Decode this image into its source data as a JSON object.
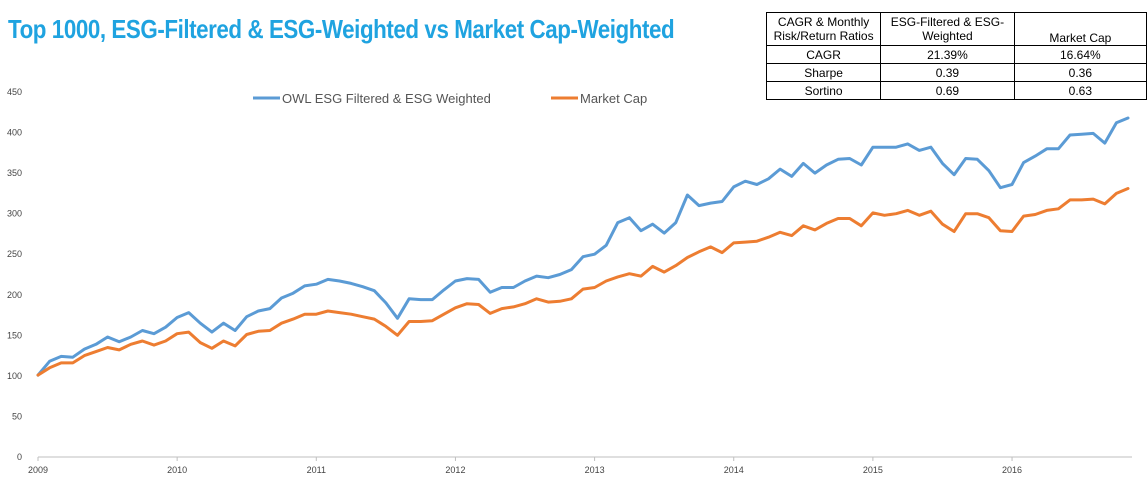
{
  "title": "Top 1000, ESG-Filtered & ESG-Weighted vs Market Cap-Weighted",
  "table": {
    "headers": [
      "CAGR & Monthly Risk/Return Ratios",
      "ESG-Filtered & ESG-Weighted",
      "Market Cap"
    ],
    "rows": [
      {
        "label": "CAGR",
        "esg": "21.39%",
        "mkt": "16.64%"
      },
      {
        "label": "Sharpe",
        "esg": "0.39",
        "mkt": "0.36"
      },
      {
        "label": "Sortino",
        "esg": "0.69",
        "mkt": "0.63"
      }
    ]
  },
  "chart_data": {
    "type": "line",
    "x": [
      "2009-01",
      "2009-02",
      "2009-03",
      "2009-04",
      "2009-05",
      "2009-06",
      "2009-07",
      "2009-08",
      "2009-09",
      "2009-10",
      "2009-11",
      "2009-12",
      "2010-01",
      "2010-02",
      "2010-03",
      "2010-04",
      "2010-05",
      "2010-06",
      "2010-07",
      "2010-08",
      "2010-09",
      "2010-10",
      "2010-11",
      "2010-12",
      "2011-01",
      "2011-02",
      "2011-03",
      "2011-04",
      "2011-05",
      "2011-06",
      "2011-07",
      "2011-08",
      "2011-09",
      "2011-10",
      "2011-11",
      "2011-12",
      "2012-01",
      "2012-02",
      "2012-03",
      "2012-04",
      "2012-05",
      "2012-06",
      "2012-07",
      "2012-08",
      "2012-09",
      "2012-10",
      "2012-11",
      "2012-12",
      "2013-01",
      "2013-02",
      "2013-03",
      "2013-04",
      "2013-05",
      "2013-06",
      "2013-07",
      "2013-08",
      "2013-09",
      "2013-10",
      "2013-11",
      "2013-12",
      "2014-01",
      "2014-02",
      "2014-03",
      "2014-04",
      "2014-05",
      "2014-06",
      "2014-07",
      "2014-08",
      "2014-09",
      "2014-10",
      "2014-11",
      "2014-12",
      "2015-01",
      "2015-02",
      "2015-03",
      "2015-04",
      "2015-05",
      "2015-06",
      "2015-07",
      "2015-08",
      "2015-09",
      "2015-10",
      "2015-11",
      "2015-12",
      "2016-01",
      "2016-02",
      "2016-03",
      "2016-04",
      "2016-05",
      "2016-06",
      "2016-07",
      "2016-08",
      "2016-09",
      "2016-10",
      "2016-11"
    ],
    "xticks": [
      "2009",
      "2010",
      "2011",
      "2012",
      "2013",
      "2014",
      "2015",
      "2016"
    ],
    "ylim": [
      0,
      450
    ],
    "yticks": [
      0,
      50,
      100,
      150,
      200,
      250,
      300,
      350,
      400,
      450
    ],
    "grid": false,
    "legend_position": "top",
    "series": [
      {
        "name": "OWL ESG Filtered & ESG Weighted",
        "color": "#5b9bd5",
        "values": [
          101,
          118,
          124,
          123,
          133,
          139,
          148,
          142,
          148,
          156,
          152,
          160,
          172,
          178,
          165,
          154,
          165,
          156,
          173,
          180,
          183,
          196,
          202,
          211,
          213,
          219,
          217,
          214,
          210,
          205,
          190,
          171,
          195,
          194,
          194,
          206,
          217,
          220,
          219,
          203,
          209,
          209,
          217,
          223,
          221,
          225,
          231,
          247,
          250,
          261,
          289,
          295,
          279,
          287,
          276,
          289,
          323,
          310,
          313,
          315,
          333,
          340,
          336,
          343,
          355,
          346,
          362,
          350,
          360,
          367,
          368,
          360,
          382,
          382,
          382,
          386,
          378,
          382,
          362,
          348,
          368,
          367,
          353,
          332,
          336,
          363,
          371,
          380,
          380,
          397,
          398,
          399,
          387,
          412,
          418
        ]
      },
      {
        "name": "Market Cap",
        "color": "#ed7d31",
        "values": [
          101,
          110,
          116,
          116,
          125,
          130,
          135,
          132,
          139,
          143,
          138,
          143,
          152,
          154,
          141,
          134,
          143,
          137,
          151,
          155,
          156,
          165,
          170,
          176,
          176,
          180,
          178,
          176,
          173,
          170,
          161,
          150,
          167,
          167,
          168,
          176,
          184,
          189,
          188,
          177,
          183,
          185,
          189,
          195,
          191,
          192,
          195,
          207,
          209,
          217,
          222,
          226,
          223,
          235,
          228,
          236,
          246,
          253,
          259,
          252,
          264,
          265,
          266,
          271,
          277,
          273,
          285,
          280,
          288,
          294,
          294,
          285,
          301,
          298,
          300,
          304,
          298,
          303,
          287,
          278,
          300,
          300,
          295,
          279,
          278,
          297,
          299,
          304,
          306,
          317,
          317,
          318,
          312,
          325,
          331
        ]
      }
    ]
  }
}
